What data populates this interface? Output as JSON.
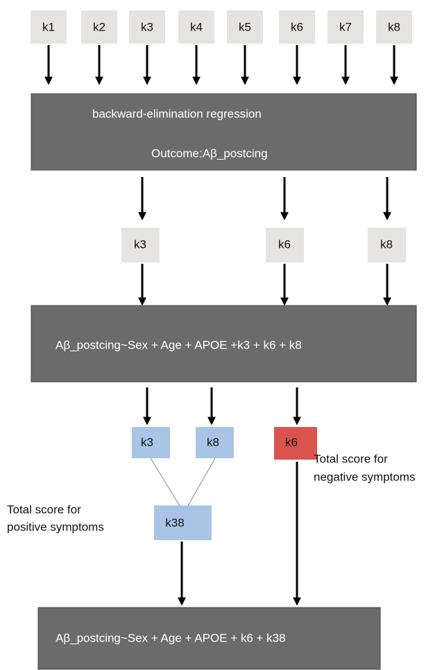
{
  "inputs": [
    "k1",
    "k2",
    "k3",
    "k4",
    "k5",
    "k6",
    "k7",
    "k8"
  ],
  "step1": {
    "lines": [
      "backward-elimination regression",
      "Outcome:Aβ_postcing"
    ]
  },
  "selected": [
    "k3",
    "k6",
    "k8"
  ],
  "model1": "Aβ_postcing~Sex + Age + APOE +k3 + k6 + k8",
  "split": {
    "positive": [
      "k3",
      "k8"
    ],
    "negative": "k6"
  },
  "combined": "k38",
  "annotations": {
    "positive": [
      "Total score for",
      "positive symptoms"
    ],
    "negative": [
      "Total score for",
      "negative symptoms"
    ]
  },
  "model2": "Aβ_postcing~Sex + Age + APOE + k6 + k38"
}
